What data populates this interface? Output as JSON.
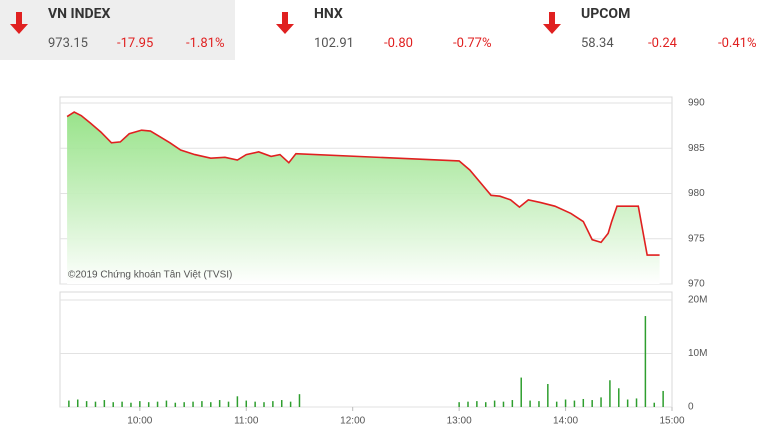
{
  "indices": [
    {
      "name": "VN INDEX",
      "value": "973.15",
      "change": "-17.95",
      "percent": "-1.81%"
    },
    {
      "name": "HNX",
      "value": "102.91",
      "change": "-0.80",
      "percent": "-0.77%"
    },
    {
      "name": "UPCOM",
      "value": "58.34",
      "change": "-0.24",
      "percent": "-0.41%"
    }
  ],
  "chart_data": [
    {
      "type": "line",
      "annotation": "©2019 Chứng khoán Tân Việt (TVSI)",
      "color": "#e02020",
      "fill": "#8ee07e",
      "grid": true,
      "x": [
        559,
        563,
        567,
        572,
        578,
        584,
        589,
        594,
        601,
        606,
        612,
        617,
        623,
        631,
        640,
        648,
        655,
        660,
        667,
        674,
        679,
        684,
        688,
        780,
        786,
        792,
        798,
        803,
        809,
        814,
        819,
        826,
        834,
        843,
        850,
        855,
        860,
        864,
        866,
        869,
        881,
        886,
        893
      ],
      "values": [
        988.5,
        989.0,
        988.6,
        987.8,
        986.8,
        985.6,
        985.7,
        986.6,
        987.0,
        986.9,
        986.2,
        985.6,
        984.8,
        984.3,
        983.9,
        984.0,
        983.7,
        984.3,
        984.6,
        984.1,
        984.3,
        983.4,
        984.4,
        983.6,
        982.6,
        981.2,
        979.8,
        979.7,
        979.3,
        978.5,
        979.3,
        979.0,
        978.6,
        977.8,
        976.9,
        974.9,
        974.6,
        975.6,
        976.9,
        978.6,
        978.6,
        973.2,
        973.2
      ],
      "xlim": [
        555,
        900
      ],
      "ylim": [
        970,
        990
      ],
      "yticks": [
        970,
        975,
        980,
        985,
        990
      ]
    },
    {
      "type": "bar",
      "color": "#2e9e2e",
      "grid": true,
      "x": [
        560,
        565,
        570,
        575,
        580,
        585,
        590,
        595,
        600,
        605,
        610,
        615,
        620,
        625,
        630,
        635,
        640,
        645,
        650,
        655,
        660,
        665,
        670,
        675,
        680,
        685,
        690,
        780,
        785,
        790,
        795,
        800,
        805,
        810,
        815,
        820,
        825,
        830,
        835,
        840,
        845,
        850,
        855,
        860,
        865,
        870,
        875,
        880,
        885,
        890,
        895
      ],
      "values": [
        1.2,
        1.4,
        1.1,
        1.0,
        1.3,
        0.9,
        1.0,
        0.8,
        1.1,
        0.9,
        1.0,
        1.2,
        0.8,
        0.9,
        1.0,
        1.1,
        0.9,
        1.3,
        1.0,
        2.0,
        1.2,
        1.0,
        0.9,
        1.1,
        1.3,
        1.0,
        2.4,
        0.9,
        1.0,
        1.1,
        0.9,
        1.2,
        1.0,
        1.3,
        5.5,
        1.2,
        1.1,
        4.3,
        1.0,
        1.4,
        1.2,
        1.5,
        1.3,
        1.8,
        5.0,
        3.5,
        1.4,
        1.6,
        17.0,
        0.8,
        3.0
      ],
      "xlim": [
        555,
        900
      ],
      "ylim": [
        0,
        20
      ],
      "yticks": [
        0,
        {
          "value": 10,
          "label": "10M"
        },
        {
          "value": 20,
          "label": "20M"
        }
      ],
      "xticks": [
        {
          "value": 600,
          "label": "10:00"
        },
        {
          "value": 660,
          "label": "11:00"
        },
        {
          "value": 720,
          "label": "12:00"
        },
        {
          "value": 780,
          "label": "13:00"
        },
        {
          "value": 840,
          "label": "14:00"
        },
        {
          "value": 900,
          "label": "15:00"
        }
      ]
    }
  ]
}
